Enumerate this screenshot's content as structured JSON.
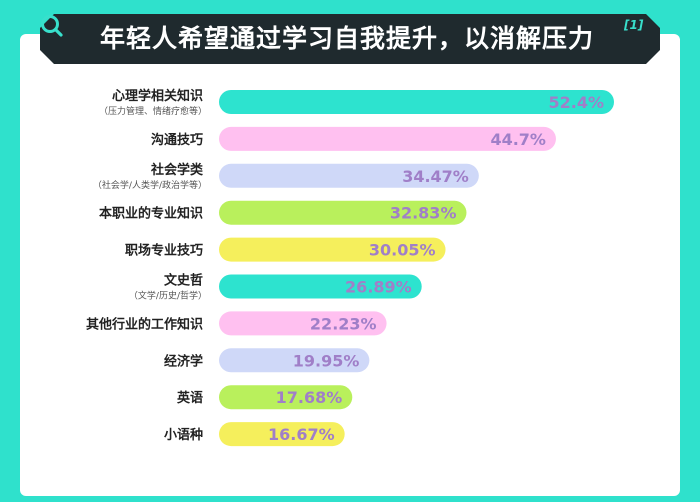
{
  "colors": {
    "background": "#2fe1cc",
    "banner": "#1f2a2e",
    "accent": "#38e0cc",
    "palette": [
      "#2de3cf",
      "#ffc0f0",
      "#cfd8f8",
      "#b9f05c",
      "#f5ef5c"
    ],
    "label_text": "#222222",
    "value_text": "#a07fc8"
  },
  "banner": {
    "icon": "search-icon",
    "title": "年轻人希望通过学习自我提升，以消解压力",
    "footnote": "[1]"
  },
  "chart_data": {
    "type": "bar",
    "orientation": "horizontal",
    "title": "年轻人希望通过学习自我提升，以消解压力",
    "categories": [
      "心理学相关知识",
      "沟通技巧",
      "社会学类",
      "本职业的专业知识",
      "职场专业技巧",
      "文史哲",
      "其他行业的工作知识",
      "经济学",
      "英语",
      "小语种"
    ],
    "sublabels": [
      "（压力管理、情绪疗愈等）",
      "",
      "（社会学/人类学/政治学等）",
      "",
      "",
      "（文学/历史/哲学）",
      "",
      "",
      "",
      ""
    ],
    "values": [
      52.4,
      44.7,
      34.47,
      32.83,
      30.05,
      26.89,
      22.23,
      19.95,
      17.68,
      16.67
    ],
    "value_labels": [
      "52.4%",
      "44.7%",
      "34.47%",
      "32.83%",
      "30.05%",
      "26.89%",
      "22.23%",
      "19.95%",
      "17.68%",
      "16.67%"
    ],
    "color_sequence": [
      0,
      1,
      2,
      3,
      4,
      0,
      1,
      2,
      3,
      4
    ],
    "xlim": [
      0,
      55
    ],
    "grid": false,
    "legend": "none"
  }
}
